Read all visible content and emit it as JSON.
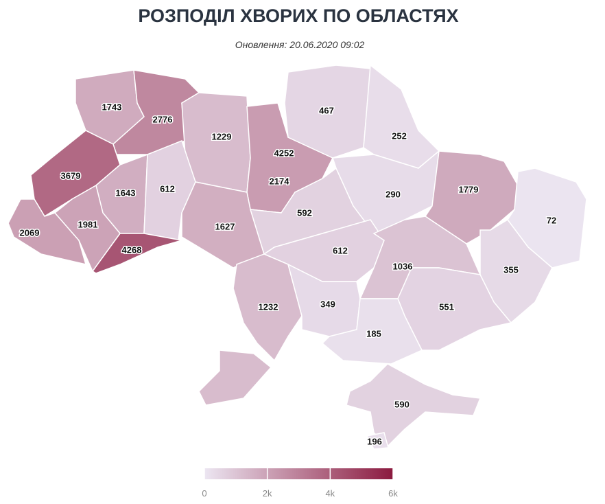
{
  "map": {
    "title": "РОЗПОДІЛ ХВОРИХ ПО ОБЛАСТЯХ",
    "subtitle": "Оновлення: 20.06.2020 09:02",
    "values": [
      1743,
      2776,
      1229,
      4252,
      2174,
      467,
      252,
      3679,
      1643,
      612,
      2069,
      1981,
      4268,
      1627,
      592,
      290,
      1779,
      72,
      612,
      1036,
      355,
      1232,
      349,
      551,
      185,
      590,
      196
    ],
    "scale": {
      "lim": [
        0,
        6000
      ],
      "colors": [
        "#ece6f2",
        "#8b1a3f"
      ],
      "ticks": [
        {
          "value": 0,
          "label": "0"
        },
        {
          "value": 2000,
          "label": "2k"
        },
        {
          "value": 4000,
          "label": "4k"
        },
        {
          "value": 6000,
          "label": "6k"
        }
      ]
    }
  }
}
